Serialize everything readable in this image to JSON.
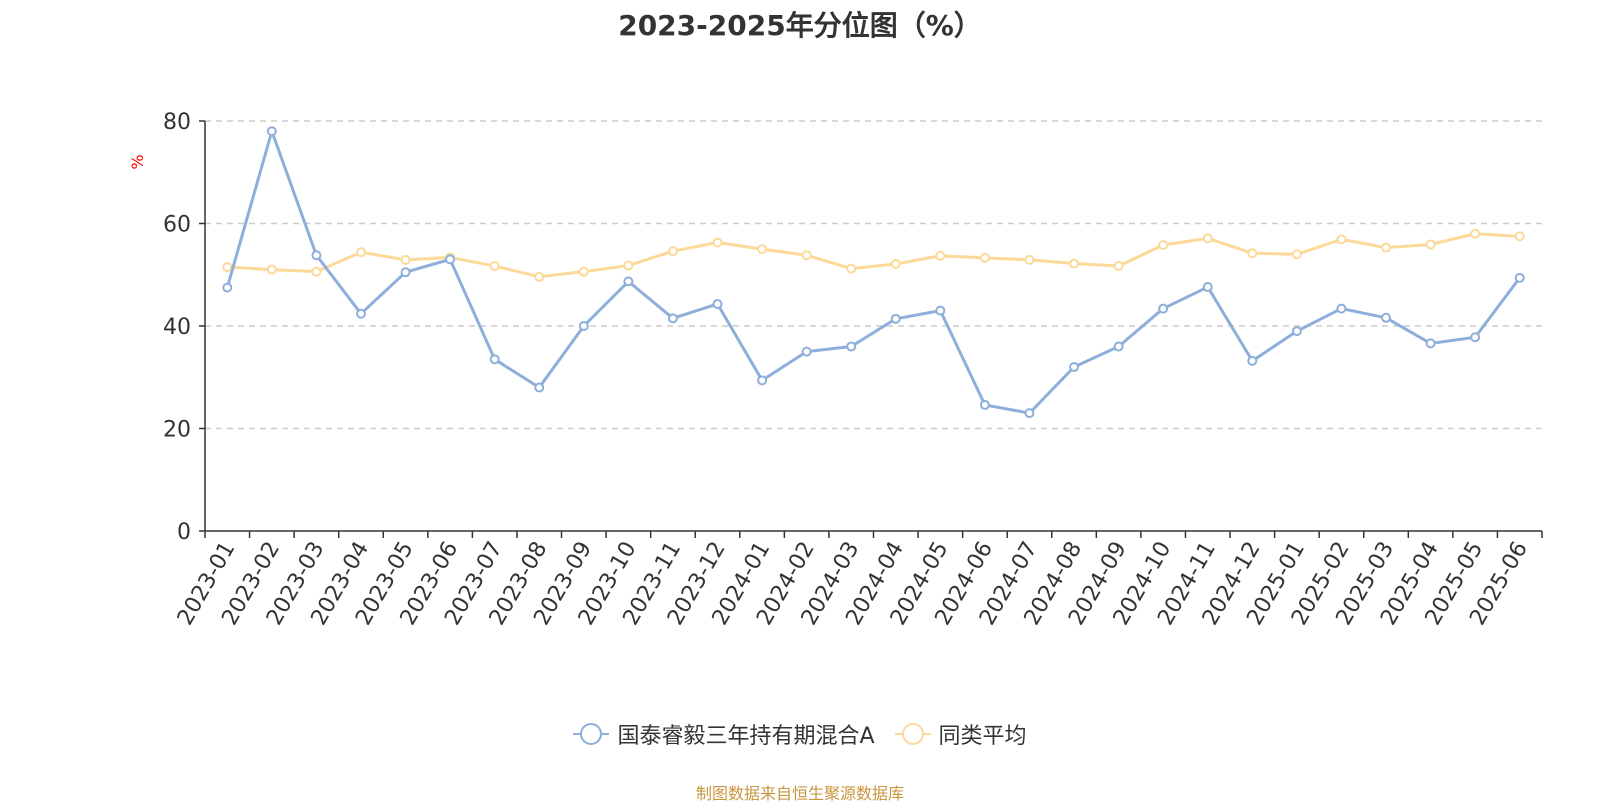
{
  "source_note": "制图数据来自恒生聚源数据库",
  "chart_data": {
    "type": "line",
    "title": "2023-2025年分位图（%）",
    "ylabel": "%",
    "ylim": [
      0,
      80
    ],
    "yticks": [
      0,
      20,
      40,
      60,
      80
    ],
    "grid": true,
    "legend_position": "bottom",
    "categories": [
      "2023-01",
      "2023-02",
      "2023-03",
      "2023-04",
      "2023-05",
      "2023-06",
      "2023-07",
      "2023-08",
      "2023-09",
      "2023-10",
      "2023-11",
      "2023-12",
      "2024-01",
      "2024-02",
      "2024-03",
      "2024-04",
      "2024-05",
      "2024-06",
      "2024-07",
      "2024-08",
      "2024-09",
      "2024-10",
      "2024-11",
      "2024-12",
      "2025-01",
      "2025-02",
      "2025-03",
      "2025-04",
      "2025-05",
      "2025-06"
    ],
    "series": [
      {
        "name": "国泰睿毅三年持有期混合A",
        "color": "#8eaedb",
        "values": [
          47.5,
          78.0,
          53.8,
          42.4,
          50.5,
          53.0,
          33.5,
          28.0,
          40.0,
          48.7,
          41.5,
          44.3,
          29.4,
          35.0,
          36.0,
          41.4,
          43.0,
          24.6,
          23.0,
          32.0,
          36.0,
          43.4,
          47.6,
          33.2,
          39.0,
          43.4,
          41.6,
          36.6,
          37.8,
          49.4
        ]
      },
      {
        "name": "同类平均",
        "color": "#fcd998",
        "values": [
          51.5,
          51.0,
          50.6,
          54.4,
          52.9,
          53.4,
          51.7,
          49.6,
          50.6,
          51.8,
          54.6,
          56.3,
          55.0,
          53.8,
          51.2,
          52.1,
          53.7,
          53.3,
          52.9,
          52.2,
          51.7,
          55.8,
          57.1,
          54.2,
          54.0,
          56.9,
          55.3,
          55.9,
          58.0,
          57.5
        ]
      }
    ]
  }
}
